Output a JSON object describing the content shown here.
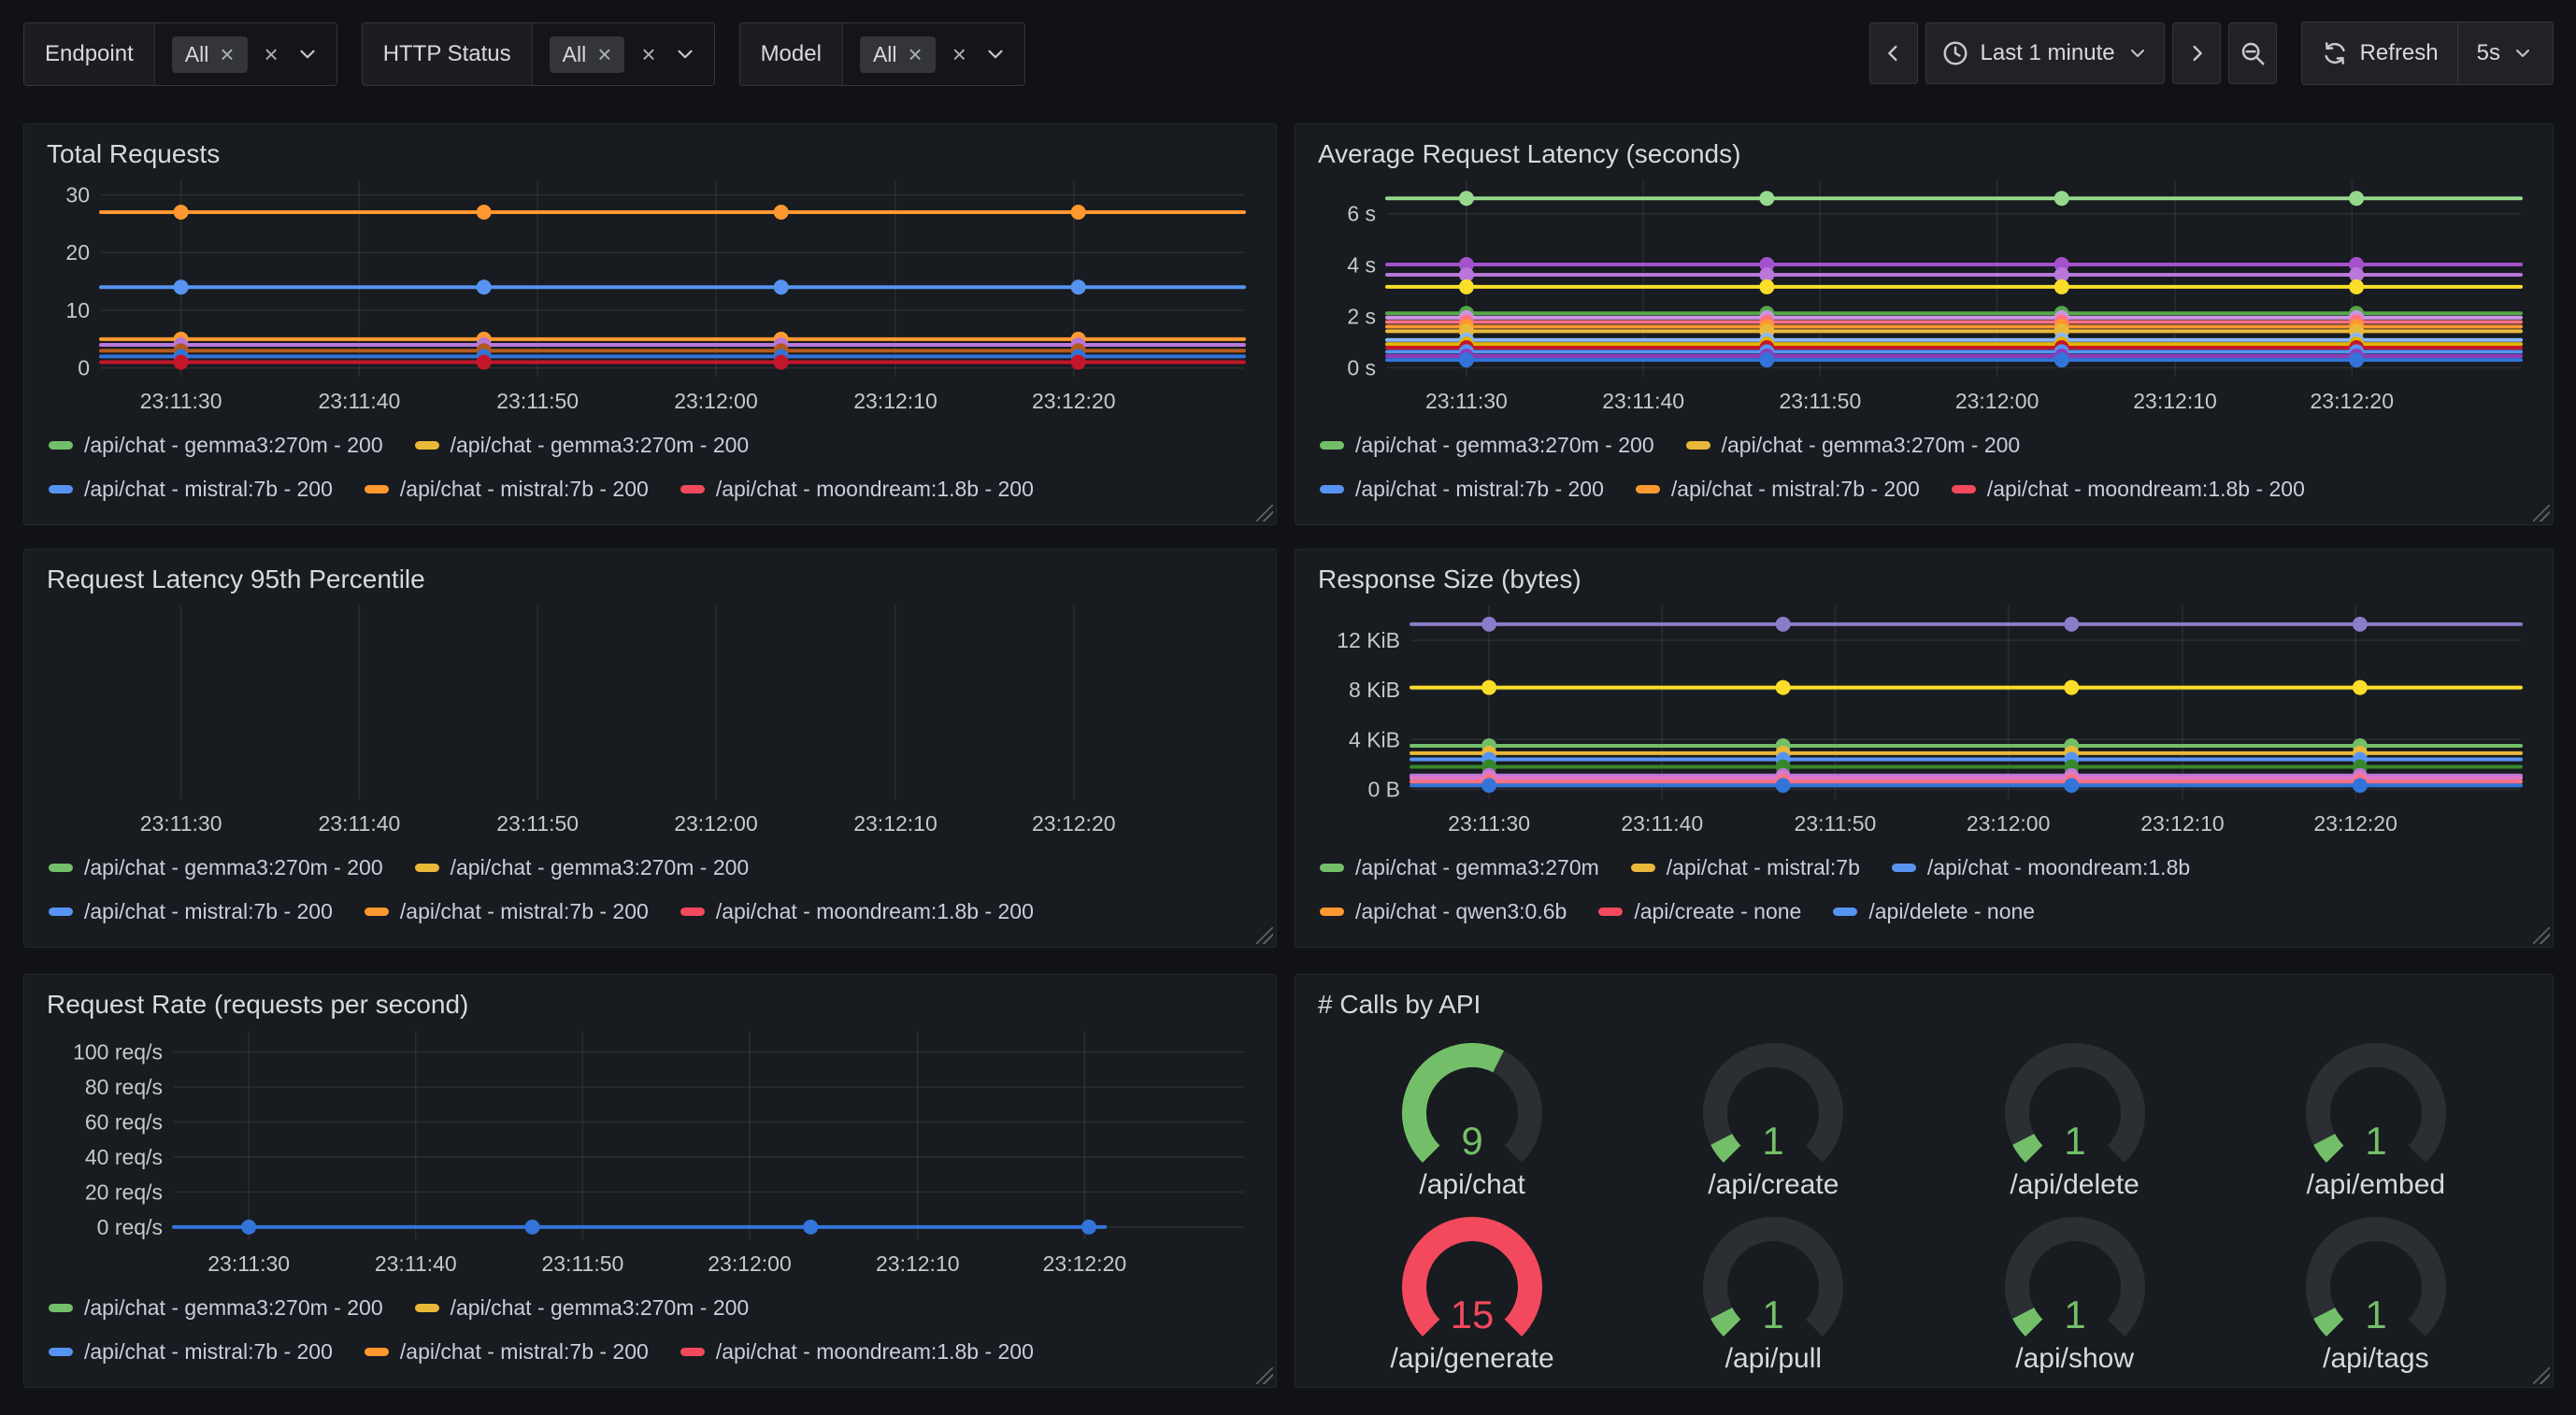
{
  "toolbar": {
    "filters": [
      {
        "label": "Endpoint",
        "selected_chip": "All"
      },
      {
        "label": "HTTP Status",
        "selected_chip": "All"
      },
      {
        "label": "Model",
        "selected_chip": "All"
      }
    ],
    "time_range": {
      "label": "Last 1 minute"
    },
    "refresh": {
      "label": "Refresh",
      "interval": "5s"
    }
  },
  "panels": [
    {
      "title": "Total Requests",
      "legend": [
        [
          {
            "color": "#73BF69",
            "label": "/api/chat - gemma3:270m - 200"
          },
          {
            "color": "#EAB839",
            "label": "/api/chat - gemma3:270m - 200"
          }
        ],
        [
          {
            "color": "#5794F2",
            "label": "/api/chat - mistral:7b - 200"
          },
          {
            "color": "#FF9830",
            "label": "/api/chat - mistral:7b - 200"
          },
          {
            "color": "#F2495C",
            "label": "/api/chat - moondream:1.8b - 200"
          }
        ]
      ]
    },
    {
      "title": "Average Request Latency (seconds)",
      "legend": [
        [
          {
            "color": "#73BF69",
            "label": "/api/chat - gemma3:270m - 200"
          },
          {
            "color": "#EAB839",
            "label": "/api/chat - gemma3:270m - 200"
          }
        ],
        [
          {
            "color": "#5794F2",
            "label": "/api/chat - mistral:7b - 200"
          },
          {
            "color": "#FF9830",
            "label": "/api/chat - mistral:7b - 200"
          },
          {
            "color": "#F2495C",
            "label": "/api/chat - moondream:1.8b - 200"
          }
        ]
      ]
    },
    {
      "title": "Request Latency 95th Percentile",
      "legend": [
        [
          {
            "color": "#73BF69",
            "label": "/api/chat - gemma3:270m - 200"
          },
          {
            "color": "#EAB839",
            "label": "/api/chat - gemma3:270m - 200"
          }
        ],
        [
          {
            "color": "#5794F2",
            "label": "/api/chat - mistral:7b - 200"
          },
          {
            "color": "#FF9830",
            "label": "/api/chat - mistral:7b - 200"
          },
          {
            "color": "#F2495C",
            "label": "/api/chat - moondream:1.8b - 200"
          }
        ]
      ]
    },
    {
      "title": "Response Size (bytes)",
      "legend": [
        [
          {
            "color": "#73BF69",
            "label": "/api/chat - gemma3:270m"
          },
          {
            "color": "#EAB839",
            "label": "/api/chat - mistral:7b"
          },
          {
            "color": "#5794F2",
            "label": "/api/chat - moondream:1.8b"
          }
        ],
        [
          {
            "color": "#FF9830",
            "label": "/api/chat - qwen3:0.6b"
          },
          {
            "color": "#F2495C",
            "label": "/api/create - none"
          },
          {
            "color": "#5794F2",
            "label": "/api/delete - none"
          }
        ]
      ]
    },
    {
      "title": "Request Rate (requests per second)",
      "legend": [
        [
          {
            "color": "#73BF69",
            "label": "/api/chat - gemma3:270m - 200"
          },
          {
            "color": "#EAB839",
            "label": "/api/chat - gemma3:270m - 200"
          }
        ],
        [
          {
            "color": "#5794F2",
            "label": "/api/chat - mistral:7b - 200"
          },
          {
            "color": "#FF9830",
            "label": "/api/chat - mistral:7b - 200"
          },
          {
            "color": "#F2495C",
            "label": "/api/chat - moondream:1.8b - 200"
          }
        ]
      ]
    },
    {
      "title": "# Calls by API"
    }
  ],
  "chart_data": [
    {
      "type": "line",
      "title": "Total Requests",
      "ylim": [
        -1.5,
        32.5
      ],
      "pad_left": 62,
      "grid": true,
      "yticks": [
        {
          "v": 0,
          "label": "0"
        },
        {
          "v": 10,
          "label": "10"
        },
        {
          "v": 20,
          "label": "20"
        },
        {
          "v": 30,
          "label": "30"
        }
      ],
      "xticks": [
        {
          "f": 0.07,
          "label": "23:11:30"
        },
        {
          "f": 0.226,
          "label": "23:11:40"
        },
        {
          "f": 0.382,
          "label": "23:11:50"
        },
        {
          "f": 0.538,
          "label": "23:12:00"
        },
        {
          "f": 0.695,
          "label": "23:12:10"
        },
        {
          "f": 0.851,
          "label": "23:12:20"
        }
      ],
      "dot_fractions": [
        0.07,
        0.335,
        0.595,
        0.855
      ],
      "series": [
        {
          "color": "#FF9830",
          "y": 27
        },
        {
          "color": "#5794F2",
          "y": 14
        },
        {
          "color": "#FF9830",
          "y": 5
        },
        {
          "color": "#B877D9",
          "y": 4
        },
        {
          "color": "#B3591F",
          "y": 3
        },
        {
          "color": "#3274D9",
          "y": 2
        },
        {
          "color": "#C4162A",
          "y": 1
        }
      ]
    },
    {
      "type": "line",
      "title": "Average Request Latency (seconds)",
      "ylim": [
        -0.35,
        7.3
      ],
      "pad_left": 78,
      "grid": true,
      "yticks": [
        {
          "v": 0,
          "label": "0 s"
        },
        {
          "v": 2,
          "label": "2 s"
        },
        {
          "v": 4,
          "label": "4 s"
        },
        {
          "v": 6,
          "label": "6 s"
        }
      ],
      "xticks": [
        {
          "f": 0.07,
          "label": "23:11:30"
        },
        {
          "f": 0.226,
          "label": "23:11:40"
        },
        {
          "f": 0.382,
          "label": "23:11:50"
        },
        {
          "f": 0.538,
          "label": "23:12:00"
        },
        {
          "f": 0.695,
          "label": "23:12:10"
        },
        {
          "f": 0.851,
          "label": "23:12:20"
        }
      ],
      "dot_fractions": [
        0.07,
        0.335,
        0.595,
        0.855
      ],
      "series": [
        {
          "color": "#96D98D",
          "y": 6.6
        },
        {
          "color": "#A352CC",
          "y": 4.02
        },
        {
          "color": "#B877D9",
          "y": 3.62
        },
        {
          "color": "#FADE2A",
          "y": 3.15
        },
        {
          "color": "#56A64B",
          "y": 2.12
        },
        {
          "color": "#CA95E5",
          "y": 1.95
        },
        {
          "color": "#FF7383",
          "y": 1.78
        },
        {
          "color": "#FF9830",
          "y": 1.6
        },
        {
          "color": "#EAB839",
          "y": 1.42
        },
        {
          "color": "#8AB8FF",
          "y": 1.08
        },
        {
          "color": "#E0B400",
          "y": 0.92
        },
        {
          "color": "#C4162A",
          "y": 0.78
        },
        {
          "color": "#5794F2",
          "y": 0.62
        },
        {
          "color": "#8F3BB8",
          "y": 0.45
        },
        {
          "color": "#3274D9",
          "y": 0.3
        }
      ]
    },
    {
      "type": "line",
      "title": "Request Latency 95th Percentile",
      "ylim": [
        0,
        1
      ],
      "pad_left": 62,
      "grid": true,
      "yticks": [],
      "xticks": [
        {
          "f": 0.07,
          "label": "23:11:30"
        },
        {
          "f": 0.226,
          "label": "23:11:40"
        },
        {
          "f": 0.382,
          "label": "23:11:50"
        },
        {
          "f": 0.538,
          "label": "23:12:00"
        },
        {
          "f": 0.695,
          "label": "23:12:10"
        },
        {
          "f": 0.851,
          "label": "23:12:20"
        }
      ],
      "dot_fractions": [],
      "series": []
    },
    {
      "type": "line",
      "title": "Response Size (bytes)",
      "ylim": [
        -0.8,
        14.8
      ],
      "pad_left": 104,
      "grid": true,
      "yticks": [
        {
          "v": 0,
          "label": "0 B"
        },
        {
          "v": 4,
          "label": "4 KiB"
        },
        {
          "v": 8,
          "label": "8 KiB"
        },
        {
          "v": 12,
          "label": "12 KiB"
        }
      ],
      "xticks": [
        {
          "f": 0.07,
          "label": "23:11:30"
        },
        {
          "f": 0.226,
          "label": "23:11:40"
        },
        {
          "f": 0.382,
          "label": "23:11:50"
        },
        {
          "f": 0.538,
          "label": "23:12:00"
        },
        {
          "f": 0.695,
          "label": "23:12:10"
        },
        {
          "f": 0.851,
          "label": "23:12:20"
        }
      ],
      "dot_fractions": [
        0.07,
        0.335,
        0.595,
        0.855
      ],
      "series": [
        {
          "color": "#8B7BC9",
          "y": 13.3
        },
        {
          "color": "#FADE2A",
          "y": 8.2
        },
        {
          "color": "#73BF69",
          "y": 3.5
        },
        {
          "color": "#EAB839",
          "y": 2.9
        },
        {
          "color": "#5794F2",
          "y": 2.4
        },
        {
          "color": "#37872D",
          "y": 1.8
        },
        {
          "color": "#B877D9",
          "y": 1.1
        },
        {
          "color": "#DE77C6",
          "y": 0.9
        },
        {
          "color": "#FF7383",
          "y": 0.6
        },
        {
          "color": "#3274D9",
          "y": 0.3
        }
      ]
    },
    {
      "type": "line",
      "title": "Request Rate (requests per second)",
      "ylim": [
        -7,
        112
      ],
      "pad_left": 140,
      "grid": true,
      "yticks": [
        {
          "v": 0,
          "label": "0 req/s"
        },
        {
          "v": 20,
          "label": "20 req/s"
        },
        {
          "v": 40,
          "label": "40 req/s"
        },
        {
          "v": 60,
          "label": "60 req/s"
        },
        {
          "v": 80,
          "label": "80 req/s"
        },
        {
          "v": 100,
          "label": "100 req/s"
        }
      ],
      "xticks": [
        {
          "f": 0.07,
          "label": "23:11:30"
        },
        {
          "f": 0.226,
          "label": "23:11:40"
        },
        {
          "f": 0.382,
          "label": "23:11:50"
        },
        {
          "f": 0.538,
          "label": "23:12:00"
        },
        {
          "f": 0.695,
          "label": "23:12:10"
        },
        {
          "f": 0.851,
          "label": "23:12:20"
        }
      ],
      "dot_fractions": [
        0.07,
        0.335,
        0.595,
        0.855
      ],
      "series": [
        {
          "color": "#3274D9",
          "y": 0,
          "x_end": 0.87
        }
      ]
    },
    {
      "type": "gauge",
      "title": "# Calls by API",
      "min": 0,
      "max": 15,
      "track_color": "#2b2e33",
      "gauges": [
        {
          "label": "/api/chat",
          "value": "9",
          "fraction": 0.6,
          "color": "#73BF69"
        },
        {
          "label": "/api/create",
          "value": "1",
          "fraction": 0.067,
          "color": "#73BF69"
        },
        {
          "label": "/api/delete",
          "value": "1",
          "fraction": 0.067,
          "color": "#73BF69"
        },
        {
          "label": "/api/embed",
          "value": "1",
          "fraction": 0.067,
          "color": "#73BF69"
        },
        {
          "label": "/api/generate",
          "value": "15",
          "fraction": 1.0,
          "color": "#F2495C"
        },
        {
          "label": "/api/pull",
          "value": "1",
          "fraction": 0.067,
          "color": "#73BF69"
        },
        {
          "label": "/api/show",
          "value": "1",
          "fraction": 0.067,
          "color": "#73BF69"
        },
        {
          "label": "/api/tags",
          "value": "1",
          "fraction": 0.067,
          "color": "#73BF69"
        }
      ]
    }
  ]
}
